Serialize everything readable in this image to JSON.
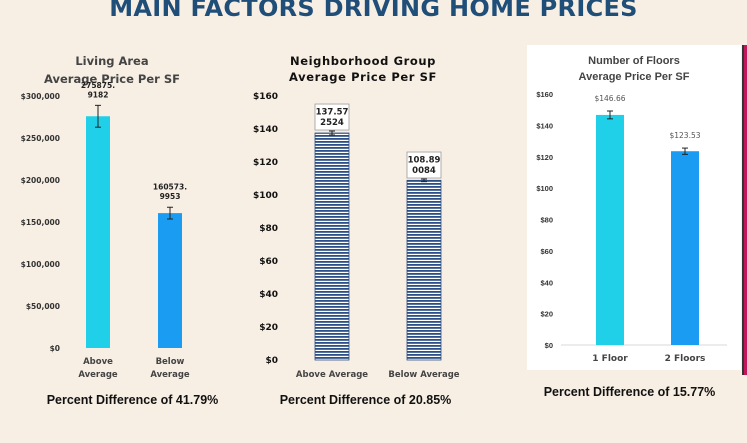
{
  "title": "MAIN FACTORS DRIVING HOME PRICES",
  "colors": {
    "title": "#1f4e79",
    "cyan": "#1fd0e8",
    "blue": "#1a9cf2",
    "navy": "#2b4f86",
    "magenta": "#c2185b"
  },
  "chart_data": [
    {
      "type": "bar",
      "title": [
        "Living Area",
        "Average Price Per SF"
      ],
      "categories": [
        [
          "Above",
          "Average"
        ],
        [
          "Below",
          "Average"
        ]
      ],
      "values": [
        275875.9182,
        160573.9953
      ],
      "data_labels": [
        [
          "275875.",
          "9182"
        ],
        [
          "160573.",
          "9953"
        ]
      ],
      "error": [
        13000,
        7000
      ],
      "ylim": [
        0,
        300000
      ],
      "yticks": [
        0,
        50000,
        100000,
        150000,
        200000,
        250000,
        300000
      ],
      "ytick_labels": [
        "$0",
        "$50,000",
        "$100,000",
        "$150,000",
        "$200,000",
        "$250,000",
        "$300,000"
      ],
      "bar_colors": [
        "#1fd0e8",
        "#1a9cf2"
      ],
      "grid": false,
      "footer": "Percent Difference of 41.79%"
    },
    {
      "type": "bar",
      "title": [
        "Neighborhood Group",
        "Average Price Per SF"
      ],
      "categories": [
        [
          "Above Average"
        ],
        [
          "Below Average"
        ]
      ],
      "values": [
        137.572524,
        108.890084
      ],
      "data_labels": [
        [
          "137.57",
          "2524"
        ],
        [
          "108.89",
          "0084"
        ]
      ],
      "error": [
        1.2,
        0.8
      ],
      "ylim": [
        0,
        160
      ],
      "yticks": [
        0,
        20,
        40,
        60,
        80,
        100,
        120,
        140,
        160
      ],
      "ytick_labels": [
        "$0",
        "$20",
        "$40",
        "$60",
        "$80",
        "$100",
        "$120",
        "$140",
        "$160"
      ],
      "bar_style": "striped",
      "bar_colors": [
        "#2b4f86",
        "#2b4f86"
      ],
      "grid": false,
      "footer": "Percent Difference of 20.85%"
    },
    {
      "type": "bar",
      "title": [
        "Number of Floors",
        "Average Price Per SF"
      ],
      "categories": [
        [
          "1 Floor"
        ],
        [
          "2 Floors"
        ]
      ],
      "values": [
        146.66,
        123.53
      ],
      "data_labels": [
        [
          "$146.66"
        ],
        [
          "$123.53"
        ]
      ],
      "error": [
        2.5,
        2.0
      ],
      "ylim": [
        0,
        160
      ],
      "yticks": [
        0,
        20,
        40,
        60,
        80,
        100,
        120,
        140,
        160
      ],
      "ytick_labels": [
        "$0",
        "$20",
        "$40",
        "$60",
        "$80",
        "$100",
        "$120",
        "$140",
        "$160"
      ],
      "bar_colors": [
        "#1fd0e8",
        "#1a9cf2"
      ],
      "grid": false,
      "footer": "Percent Difference of 15.77%"
    }
  ]
}
